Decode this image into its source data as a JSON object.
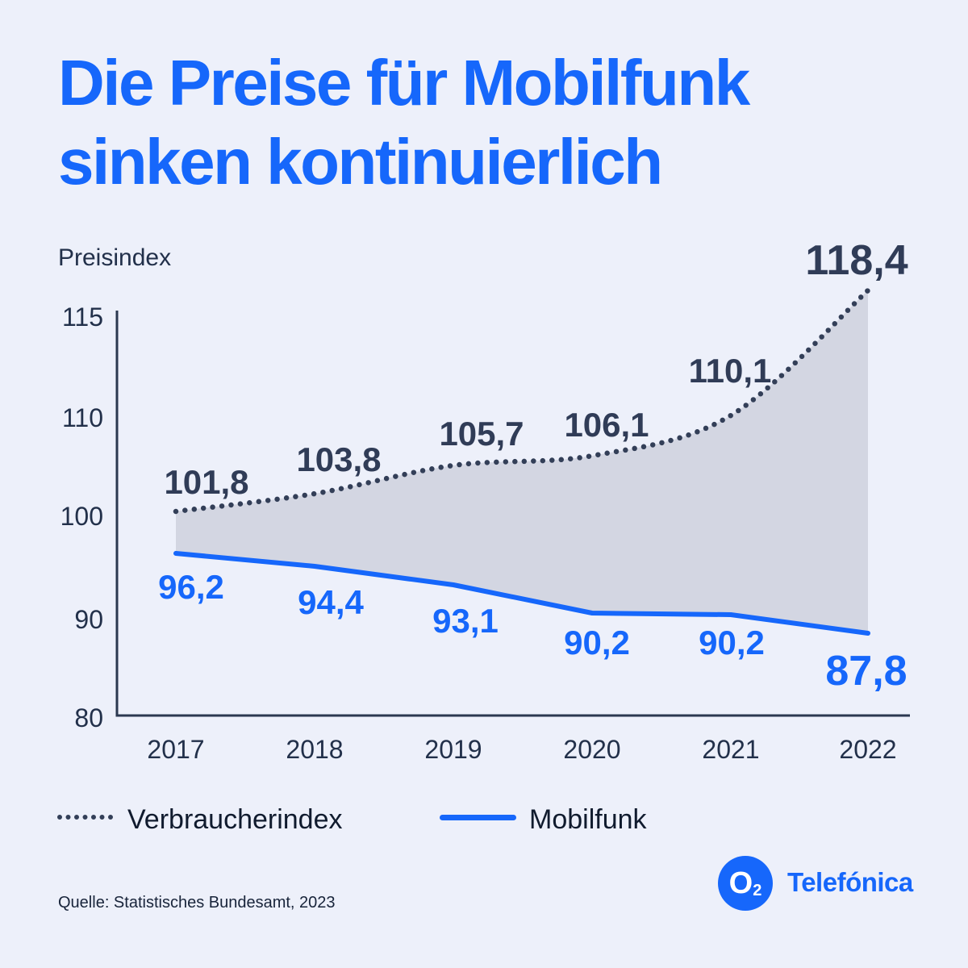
{
  "page": {
    "background": "#edf0fa"
  },
  "title": {
    "line1": "Die Preise für Mobilfunk",
    "line2": "sinken kontinuierlich"
  },
  "chart_data": {
    "type": "line",
    "title": "",
    "ylabel": "Preisindex",
    "xlabel": "",
    "categories": [
      "2017",
      "2018",
      "2019",
      "2020",
      "2021",
      "2022"
    ],
    "y_tick_labels": [
      "115",
      "110",
      "100",
      "90",
      "80"
    ],
    "y_ticks": [
      115,
      110,
      100,
      90,
      80
    ],
    "ylim": [
      80,
      120
    ],
    "grid": false,
    "legend_position": "bottom",
    "area_between_series_color": "#d3d6e2",
    "series": [
      {
        "name": "Verbraucherindex",
        "style": "dotted",
        "color": "#333f58",
        "values": [
          101.8,
          103.8,
          105.7,
          106.1,
          110.1,
          118.4
        ],
        "value_labels": [
          "101,8",
          "103,8",
          "105,7",
          "106,1",
          "110,1",
          "118,4"
        ]
      },
      {
        "name": "Mobilfunk",
        "style": "solid",
        "color": "#1667fb",
        "values": [
          96.2,
          94.4,
          93.1,
          90.2,
          90.2,
          87.8
        ],
        "value_labels": [
          "96,2",
          "94,4",
          "93,1",
          "90,2",
          "90,2",
          "87,8"
        ]
      }
    ]
  },
  "footer": {
    "source": "Quelle: Statistisches Bundesamt, 2023",
    "logo_o": "O",
    "logo_sub": "2",
    "logo_brand": "Telefónica"
  },
  "colors": {
    "accent_blue": "#1667fb",
    "navy_labels": "#303c57",
    "axis_text": "#22304a",
    "area_fill": "#d3d6e2",
    "background": "#edf0fa"
  }
}
